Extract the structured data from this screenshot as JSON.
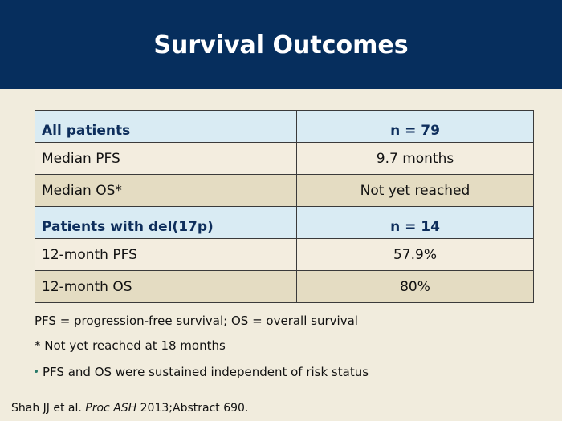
{
  "slide": {
    "title": "Survival Outcomes"
  },
  "table": {
    "rows": [
      {
        "type": "head",
        "label": "All patients",
        "value": "n = 79"
      },
      {
        "type": "light",
        "label": "Median PFS",
        "value": "9.7 months"
      },
      {
        "type": "dark",
        "label": "Median OS*",
        "value": "Not yet reached"
      },
      {
        "type": "head",
        "label": "Patients with del(17p)",
        "value": "n = 14"
      },
      {
        "type": "light",
        "label": "12-month PFS",
        "value": "57.9%"
      },
      {
        "type": "dark",
        "label": "12-month OS",
        "value": "80%"
      }
    ]
  },
  "notes": {
    "abbrev": "PFS = progression-free survival; OS = overall survival",
    "asterisk": "* Not yet reached at 18 months",
    "bullet": "PFS and OS were sustained independent of risk status"
  },
  "citation": {
    "authors": "Shah JJ et al. ",
    "journal": "Proc ASH",
    "rest": " 2013;Abstract 690."
  },
  "colors": {
    "header_bg": "#062e5d",
    "page_bg": "#f1ecdd",
    "table_head_bg": "#d9ebf3",
    "table_head_text": "#0e2e5c",
    "row_light": "#f3eddf",
    "row_dark": "#e4dcc2"
  }
}
